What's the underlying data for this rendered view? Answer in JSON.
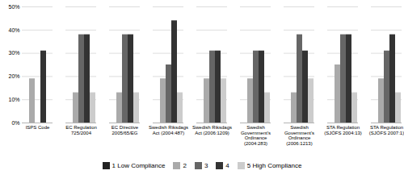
{
  "chart_data": {
    "type": "bar",
    "categories": [
      "ISPS Code",
      "EC Regulation\n725/2004",
      "EC Directive\n2005/65/EG",
      "Swedish Riksdags\nAct (2004:487)",
      "Swedish Riksdags\nAct (2006:1209)",
      "Swedish\nGovernment's\nOrdinance\n(2004:283)",
      "Swedish\nGovernment's\nOrdinance\n(2006:1213)",
      "STA Regulation\n(SJÖFS 2004:13)",
      "STA Regulation\n(SJÖFS 2007:1)"
    ],
    "series": [
      {
        "name": "1 Low Compliance",
        "color": "#222222",
        "values": [
          0,
          0,
          0,
          0,
          0,
          0,
          0,
          0,
          0
        ]
      },
      {
        "name": "2",
        "color": "#aaaaaa",
        "values": [
          19,
          13,
          13,
          19,
          19,
          19,
          13,
          25,
          19
        ]
      },
      {
        "name": "3",
        "color": "#666666",
        "values": [
          0,
          38,
          38,
          25,
          31,
          31,
          38,
          38,
          31
        ]
      },
      {
        "name": "4",
        "color": "#333333",
        "values": [
          31,
          38,
          38,
          44,
          31,
          31,
          31,
          38,
          38
        ]
      },
      {
        "name": "5 High Compliance",
        "color": "#cccccc",
        "values": [
          0,
          13,
          13,
          13,
          19,
          13,
          19,
          13,
          13
        ]
      }
    ],
    "ylim": [
      0,
      50
    ],
    "yticks": [
      {
        "value": 0,
        "label": "0%"
      },
      {
        "value": 10,
        "label": "10%"
      },
      {
        "value": 20,
        "label": "20%"
      },
      {
        "value": 30,
        "label": "30%"
      },
      {
        "value": 40,
        "label": "40%"
      },
      {
        "value": 50,
        "label": "50%"
      }
    ],
    "grid": true,
    "legend": "bottom"
  }
}
